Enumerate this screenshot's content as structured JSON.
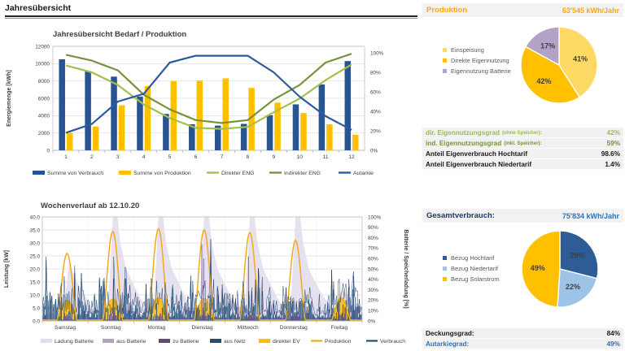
{
  "header": {
    "title": "Jahresübersicht"
  },
  "production_panel": {
    "title": "Produktion",
    "value": "63'545 kWh/Jahr",
    "legend": [
      {
        "label": "Einspeisung",
        "color": "#FFD966"
      },
      {
        "label": "Direkte Eigennutzung",
        "color": "#FFC000"
      },
      {
        "label": "Eigennutzung Batterie",
        "color": "#B3A2C7"
      }
    ],
    "stats": [
      {
        "label": "dir. Eigennutzungsgrad",
        "sub": "(ohne Speicher):",
        "value": "42%",
        "color": "#9BBB59"
      },
      {
        "label": "ind. Eigennutzungsgrad",
        "sub": "(inkl. Speicher):",
        "value": "59%",
        "color": "#76933C"
      },
      {
        "label": "Anteil Eigenverbrauch Hochtarif",
        "sub": "",
        "value": "98.6%",
        "color": "#1a1a1a"
      },
      {
        "label": "Anteil Eigenverbrauch Niedertarif",
        "sub": "",
        "value": "1.4%",
        "color": "#1a1a1a"
      }
    ]
  },
  "consumption_panel": {
    "title": "Gesamtverbrauch:",
    "value": "75'834 kWh/Jahr",
    "legend": [
      {
        "label": "Bezug Hochtarif",
        "color": "#2E5C96"
      },
      {
        "label": "Bezug Niedertarif",
        "color": "#9DC3E6"
      },
      {
        "label": "Bezug Solarstrom",
        "color": "#FFC000"
      }
    ],
    "stats": [
      {
        "label": "Deckungsgrad:",
        "sub": "",
        "value": "84%",
        "color": "#1a1a1a"
      },
      {
        "label": "Autarkiegrad:",
        "sub": "",
        "value": "49%",
        "color": "#2E75B6"
      }
    ]
  },
  "chart_data": [
    {
      "id": "annual",
      "type": "bar",
      "title": "Jahresübersicht Bedarf / Produktion",
      "categories": [
        "1",
        "2",
        "3",
        "4",
        "5",
        "6",
        "7",
        "8",
        "9",
        "10",
        "11",
        "12"
      ],
      "ylabel": "Energiemenge [kWh]",
      "ylim": [
        0,
        12000
      ],
      "ytick": 2000,
      "y2lim": [
        0,
        100
      ],
      "y2tick": 20,
      "grid": true,
      "legend_position": "bottom",
      "series": [
        {
          "name": "Summe von Verbrauch",
          "type": "bar",
          "color": "#2A5490",
          "values": [
            10500,
            9100,
            8500,
            6200,
            4200,
            3000,
            2850,
            3050,
            4050,
            5300,
            7600,
            10300
          ]
        },
        {
          "name": "Summe von Produktion",
          "type": "bar",
          "color": "#FFC000",
          "values": [
            2000,
            2750,
            5200,
            7400,
            8000,
            8050,
            8300,
            7200,
            5500,
            4300,
            3000,
            1800
          ]
        },
        {
          "name": "Direkter ENG",
          "type": "line",
          "axis": "y2",
          "color": "#A3C04E",
          "values": [
            87,
            80,
            67,
            47,
            33,
            23,
            22,
            24,
            39,
            53,
            72,
            88
          ]
        },
        {
          "name": "Indirekter ENG",
          "type": "line",
          "axis": "y2",
          "color": "#76933C",
          "values": [
            98,
            92,
            82,
            57,
            42,
            31,
            28,
            31,
            52,
            67,
            90,
            99
          ]
        },
        {
          "name": "Autarkie",
          "type": "line",
          "axis": "y2",
          "color": "#2C5AA0",
          "values": [
            18,
            27,
            50,
            58,
            90,
            97,
            97,
            97,
            80,
            55,
            35,
            21
          ]
        }
      ]
    },
    {
      "id": "week",
      "type": "area",
      "title": "Wochenverlauf ab 12.10.20",
      "categories": [
        "Samstag",
        "Sonntag",
        "Montag",
        "Dienstag",
        "Mittwoch",
        "Donnerstag",
        "Freitag"
      ],
      "ylabel": "Leistung [kW]",
      "ylim": [
        0,
        40
      ],
      "ytick": 5,
      "y2label": "Batterie / Speicherladung [%]",
      "y2lim": [
        0,
        100
      ],
      "y2tick": 10,
      "legend": [
        {
          "name": "Ladung Batterie",
          "color": "#E2DCEC",
          "kind": "box"
        },
        {
          "name": "aus Batterie",
          "color": "#B2A1C7",
          "kind": "box"
        },
        {
          "name": "zu Batterie",
          "color": "#5F497A",
          "kind": "box"
        },
        {
          "name": "aus Netz",
          "color": "#1F4E79",
          "kind": "box"
        },
        {
          "name": "direkter EV",
          "color": "#FFC000",
          "kind": "box"
        },
        {
          "name": "Produktion",
          "color": "#F5A81C",
          "kind": "line"
        },
        {
          "name": "Verbrauch",
          "color": "#1F4E79",
          "kind": "line"
        }
      ],
      "production_peaks_kw": [
        26,
        34.5,
        35.5,
        35,
        34,
        31,
        9
      ],
      "direct_ev_peaks_kw": [
        8,
        8.5,
        9,
        8.7,
        1.5,
        1.2,
        8.5
      ],
      "consumption_day_peaks_kw": [
        25.5,
        25.5,
        24.5,
        32.5,
        29.5,
        17,
        24.5
      ],
      "battery_soc_points": [
        [
          0,
          14
        ],
        [
          4,
          8
        ],
        [
          8,
          4
        ],
        [
          11,
          8
        ],
        [
          12.5,
          30
        ],
        [
          14,
          55
        ],
        [
          15.5,
          50
        ],
        [
          18,
          38
        ],
        [
          22,
          26
        ],
        [
          26,
          14
        ],
        [
          31,
          8
        ],
        [
          34.5,
          10
        ],
        [
          36,
          60
        ],
        [
          37,
          100
        ],
        [
          39.5,
          100
        ],
        [
          41,
          75
        ],
        [
          44,
          50
        ],
        [
          48,
          35
        ],
        [
          52,
          20
        ],
        [
          57,
          10
        ],
        [
          58.5,
          12
        ],
        [
          60,
          65
        ],
        [
          61,
          100
        ],
        [
          63.5,
          100
        ],
        [
          65,
          75
        ],
        [
          68,
          50
        ],
        [
          72,
          35
        ],
        [
          76,
          20
        ],
        [
          81,
          10
        ],
        [
          82.5,
          12
        ],
        [
          84,
          65
        ],
        [
          85,
          100
        ],
        [
          87.5,
          100
        ],
        [
          89,
          75
        ],
        [
          92,
          50
        ],
        [
          96,
          35
        ],
        [
          100,
          20
        ],
        [
          105,
          10
        ],
        [
          106.5,
          12
        ],
        [
          108,
          65
        ],
        [
          109,
          100
        ],
        [
          111.5,
          100
        ],
        [
          113,
          75
        ],
        [
          116,
          50
        ],
        [
          120,
          35
        ],
        [
          124,
          20
        ],
        [
          129,
          10
        ],
        [
          130.5,
          12
        ],
        [
          132,
          65
        ],
        [
          133,
          100
        ],
        [
          135.5,
          100
        ],
        [
          137,
          75
        ],
        [
          140,
          50
        ],
        [
          144,
          35
        ],
        [
          148,
          22
        ],
        [
          153,
          12
        ],
        [
          154,
          14
        ],
        [
          157,
          30
        ],
        [
          160,
          26
        ],
        [
          164,
          16
        ],
        [
          168,
          10
        ]
      ],
      "noise_seed": 7
    },
    {
      "id": "production_pie",
      "type": "pie",
      "slices": [
        {
          "label": "Einspeisung",
          "value": 41,
          "pct_label": "41%",
          "color": "#FFD966"
        },
        {
          "label": "Direkte Eigennutzung",
          "value": 42,
          "pct_label": "42%",
          "color": "#FFC000"
        },
        {
          "label": "Eigennutzung Batterie",
          "value": 17,
          "pct_label": "17%",
          "color": "#B3A2C7"
        }
      ]
    },
    {
      "id": "consumption_pie",
      "type": "pie",
      "slices": [
        {
          "label": "Bezug Hochtarif",
          "value": 29,
          "pct_label": "29%",
          "color": "#2E5C96",
          "label_color": "#1F3864"
        },
        {
          "label": "Bezug Niedertarif",
          "value": 22,
          "pct_label": "22%",
          "color": "#9DC3E6"
        },
        {
          "label": "Bezug Solarstrom",
          "value": 49,
          "pct_label": "49%",
          "color": "#FFC000"
        }
      ]
    }
  ]
}
